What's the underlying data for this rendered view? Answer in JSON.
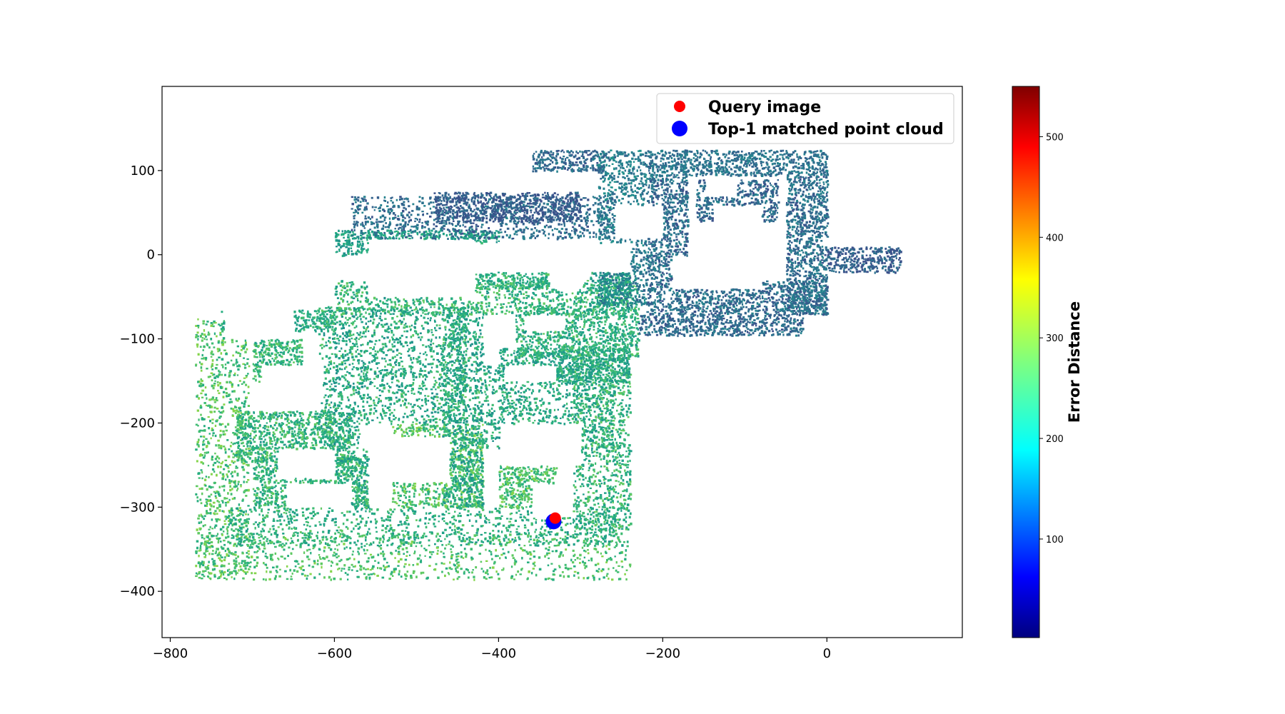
{
  "chart_data": {
    "type": "scatter",
    "title": "",
    "xlabel": "",
    "ylabel": "",
    "xlim": [
      -810,
      165
    ],
    "ylim": [
      -455,
      200
    ],
    "xticks": [
      -800,
      -600,
      -400,
      -200,
      0
    ],
    "yticks": [
      100,
      0,
      -100,
      -200,
      -300,
      -400
    ],
    "xtick_labels": [
      "−800",
      "−600",
      "−400",
      "−200",
      "0"
    ],
    "ytick_labels": [
      "100",
      "0",
      "−100",
      "−200",
      "−300",
      "−400"
    ],
    "grid": false,
    "legend_position": "top-right",
    "series": [
      {
        "name": "Query image",
        "color": "#ff0000",
        "marker": "circle",
        "points": [
          [
            -331,
            -313
          ]
        ]
      },
      {
        "name": "Top-1 matched point cloud",
        "color": "#0000ff",
        "marker": "circle",
        "points": [
          [
            -333,
            -317
          ]
        ]
      }
    ],
    "point_cloud": {
      "colormap": "jet",
      "description_regions": [
        {
          "x": [
            -770,
            -240
          ],
          "y": [
            -385,
            -60
          ],
          "error_range": [
            230,
            330
          ]
        },
        {
          "x": [
            -590,
            -230
          ],
          "y": [
            -100,
            40
          ],
          "error_range": [
            220,
            320
          ]
        },
        {
          "x": [
            -600,
            -250
          ],
          "y": [
            20,
            75
          ],
          "error_range": [
            170,
            230
          ]
        },
        {
          "x": [
            -360,
            90
          ],
          "y": [
            -100,
            125
          ],
          "error_range": [
            170,
            240
          ]
        }
      ]
    },
    "colorbar": {
      "label": "Error Distance",
      "min": 2,
      "max": 550,
      "ticks": [
        100,
        200,
        300,
        400,
        500
      ],
      "tick_labels": [
        "100",
        "200",
        "300",
        "400",
        "500"
      ],
      "colormap": "jet"
    }
  }
}
